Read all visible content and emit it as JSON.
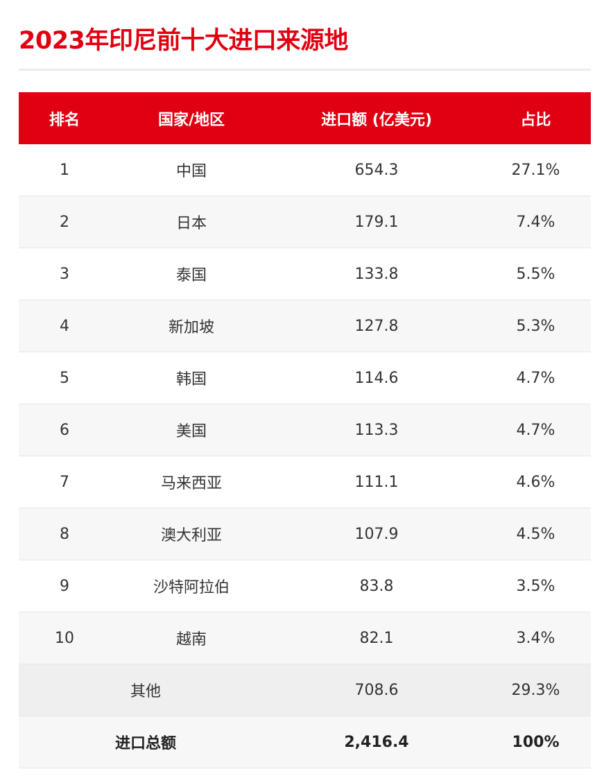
{
  "title": "2023年印尼前十大进口来源地",
  "columns": {
    "rank": "排名",
    "region": "国家/地区",
    "value": "进口额 (亿美元)",
    "share": "占比"
  },
  "rows": [
    {
      "rank": "1",
      "region": "中国",
      "value": "654.3",
      "share": "27.1%"
    },
    {
      "rank": "2",
      "region": "日本",
      "value": "179.1",
      "share": "7.4%"
    },
    {
      "rank": "3",
      "region": "泰国",
      "value": "133.8",
      "share": "5.5%"
    },
    {
      "rank": "4",
      "region": "新加坡",
      "value": "127.8",
      "share": "5.3%"
    },
    {
      "rank": "5",
      "region": "韩国",
      "value": "114.6",
      "share": "4.7%"
    },
    {
      "rank": "6",
      "region": "美国",
      "value": "113.3",
      "share": "4.7%"
    },
    {
      "rank": "7",
      "region": "马来西亚",
      "value": "111.1",
      "share": "4.6%"
    },
    {
      "rank": "8",
      "region": "澳大利亚",
      "value": "107.9",
      "share": "4.5%"
    },
    {
      "rank": "9",
      "region": "沙特阿拉伯",
      "value": "83.8",
      "share": "3.5%"
    },
    {
      "rank": "10",
      "region": "越南",
      "value": "82.1",
      "share": "3.4%"
    }
  ],
  "others": {
    "label": "其他",
    "value": "708.6",
    "share": "29.3%"
  },
  "total": {
    "label": "进口总额",
    "value": "2,416.4",
    "share": "100%"
  },
  "colors": {
    "accent": "#e00012",
    "header_text": "#ffffff",
    "stripe": "#f7f7f7",
    "others_row": "#efefef"
  }
}
